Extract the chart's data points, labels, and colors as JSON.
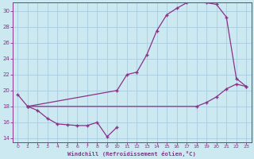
{
  "xlabel": "Windchill (Refroidissement éolien,°C)",
  "line_color": "#883388",
  "bg_color": "#cce8f0",
  "grid_color": "#aaccdd",
  "xlim": [
    -0.5,
    23.5
  ],
  "ylim": [
    13.5,
    31.0
  ],
  "yticks": [
    14,
    16,
    18,
    20,
    22,
    24,
    26,
    28,
    30
  ],
  "xticks": [
    0,
    1,
    2,
    3,
    4,
    5,
    6,
    7,
    8,
    9,
    10,
    11,
    12,
    13,
    14,
    15,
    16,
    17,
    18,
    19,
    20,
    21,
    22,
    23
  ],
  "series1_x": [
    0,
    1,
    2,
    3,
    4,
    5,
    6,
    7,
    8,
    9,
    10
  ],
  "series1_y": [
    19.5,
    18.0,
    17.5,
    16.5,
    15.8,
    15.7,
    15.6,
    15.6,
    16.0,
    14.2,
    15.4
  ],
  "series2_x": [
    1,
    10,
    11,
    12,
    13,
    14,
    15,
    16,
    17,
    18,
    19,
    20,
    21,
    22,
    23
  ],
  "series2_y": [
    18.0,
    20.0,
    22.0,
    22.3,
    24.5,
    27.5,
    29.5,
    30.3,
    31.0,
    31.2,
    31.0,
    30.8,
    29.2,
    21.5,
    20.5
  ],
  "series3_x": [
    1,
    18,
    19,
    20,
    21,
    22,
    23
  ],
  "series3_y": [
    18.0,
    18.0,
    18.5,
    19.2,
    20.2,
    20.8,
    20.5
  ]
}
